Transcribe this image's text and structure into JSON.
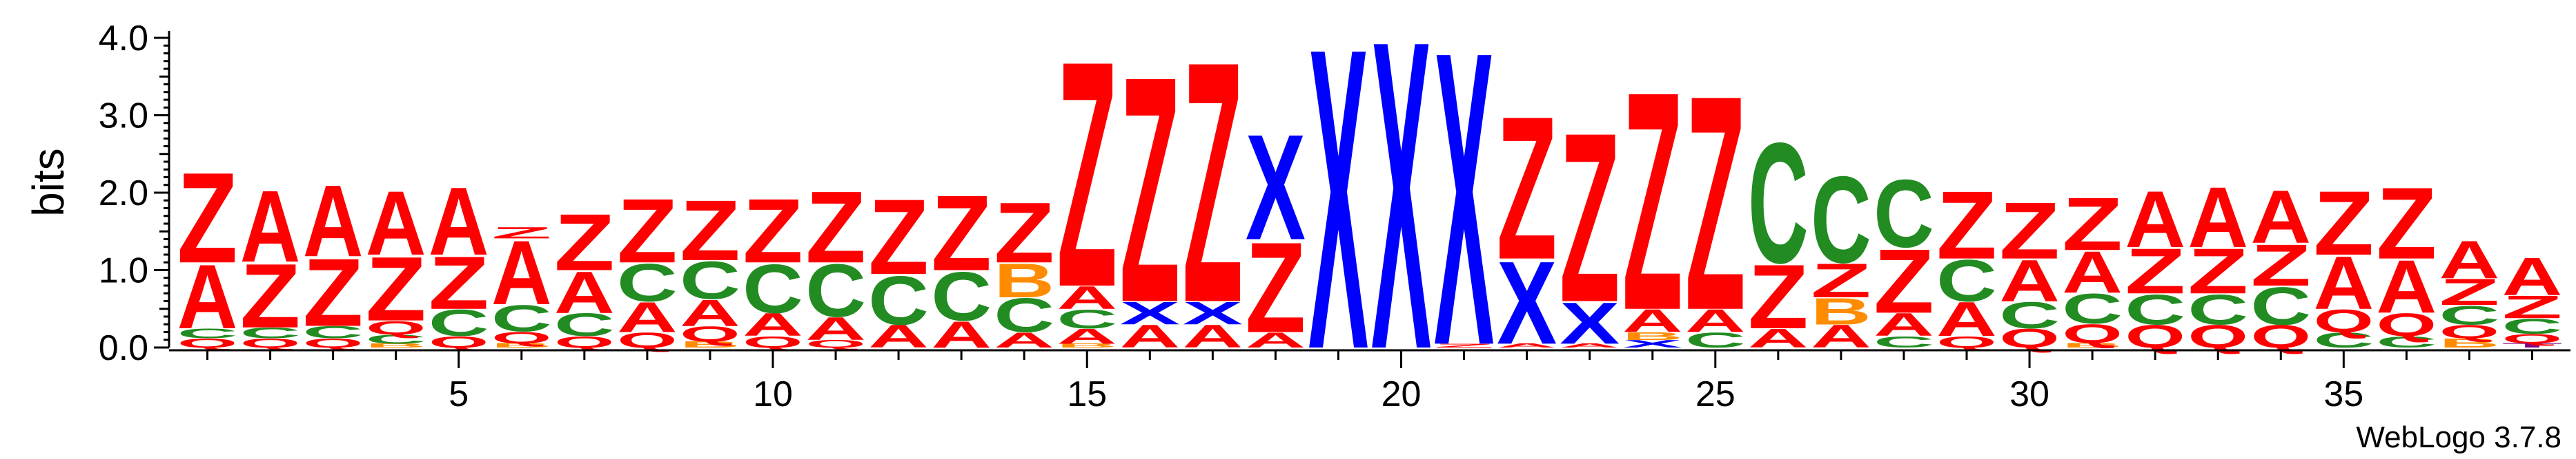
{
  "chart_data": {
    "type": "sequence-logo",
    "ylabel": "bits",
    "xlabel": "",
    "ylim": [
      0,
      4.0
    ],
    "yticks": [
      "0.0",
      "1.0",
      "2.0",
      "3.0",
      "4.0"
    ],
    "yticks_values": [
      0,
      1,
      2,
      3,
      4
    ],
    "xticks": [
      "5",
      "10",
      "15",
      "20",
      "25",
      "30",
      "35"
    ],
    "xticks_values": [
      5,
      10,
      15,
      20,
      25,
      30,
      35
    ],
    "footer": "WebLogo 3.7.8",
    "colors": {
      "Z": "#ff0000",
      "A": "#ff0000",
      "C": "#228b22",
      "Q": "#ff0000",
      "B": "#ff8c00",
      "X": "#0000ff",
      "T": "#800080"
    },
    "positions": [
      {
        "pos": 1,
        "stack": [
          [
            "Q",
            0.12
          ],
          [
            "C",
            0.13
          ],
          [
            "A",
            0.85
          ],
          [
            "Z",
            1.2
          ]
        ]
      },
      {
        "pos": 2,
        "stack": [
          [
            "Q",
            0.12
          ],
          [
            "C",
            0.14
          ],
          [
            "Z",
            0.85
          ],
          [
            "A",
            0.95
          ]
        ]
      },
      {
        "pos": 3,
        "stack": [
          [
            "Q",
            0.12
          ],
          [
            "C",
            0.16
          ],
          [
            "Z",
            0.9
          ],
          [
            "A",
            0.95
          ]
        ]
      },
      {
        "pos": 4,
        "stack": [
          [
            "B",
            0.05
          ],
          [
            "C",
            0.12
          ],
          [
            "Q",
            0.18
          ],
          [
            "Z",
            0.85
          ],
          [
            "A",
            0.85
          ]
        ]
      },
      {
        "pos": 5,
        "stack": [
          [
            "Q",
            0.15
          ],
          [
            "C",
            0.35
          ],
          [
            "Z",
            0.7
          ],
          [
            "A",
            0.9
          ]
        ]
      },
      {
        "pos": 6,
        "stack": [
          [
            "B",
            0.06
          ],
          [
            "Q",
            0.15
          ],
          [
            "C",
            0.35
          ],
          [
            "A",
            0.85
          ],
          [
            "Z",
            0.15
          ]
        ]
      },
      {
        "pos": 7,
        "stack": [
          [
            "Q",
            0.15
          ],
          [
            "C",
            0.3
          ],
          [
            "A",
            0.55
          ],
          [
            "Z",
            0.75
          ]
        ]
      },
      {
        "pos": 8,
        "stack": [
          [
            "Q",
            0.2
          ],
          [
            "A",
            0.4
          ],
          [
            "C",
            0.5
          ],
          [
            "Z",
            0.85
          ]
        ]
      },
      {
        "pos": 9,
        "stack": [
          [
            "B",
            0.08
          ],
          [
            "Q",
            0.2
          ],
          [
            "A",
            0.35
          ],
          [
            "C",
            0.5
          ],
          [
            "Z",
            0.8
          ]
        ]
      },
      {
        "pos": 10,
        "stack": [
          [
            "Q",
            0.15
          ],
          [
            "A",
            0.3
          ],
          [
            "C",
            0.65
          ],
          [
            "Z",
            0.85
          ]
        ]
      },
      {
        "pos": 11,
        "stack": [
          [
            "Q",
            0.1
          ],
          [
            "A",
            0.3
          ],
          [
            "C",
            0.7
          ],
          [
            "Z",
            0.95
          ]
        ]
      },
      {
        "pos": 12,
        "stack": [
          [
            "A",
            0.3
          ],
          [
            "C",
            0.65
          ],
          [
            "Z",
            1.0
          ]
        ]
      },
      {
        "pos": 13,
        "stack": [
          [
            "A",
            0.35
          ],
          [
            "C",
            0.65
          ],
          [
            "Z",
            1.0
          ]
        ]
      },
      {
        "pos": 14,
        "stack": [
          [
            "A",
            0.2
          ],
          [
            "C",
            0.45
          ],
          [
            "B",
            0.45
          ],
          [
            "Z",
            0.8
          ]
        ]
      },
      {
        "pos": 15,
        "stack": [
          [
            "B",
            0.05
          ],
          [
            "A",
            0.2
          ],
          [
            "C",
            0.25
          ],
          [
            "A",
            0.3
          ],
          [
            "Z",
            3.0
          ]
        ]
      },
      {
        "pos": 16,
        "stack": [
          [
            "A",
            0.3
          ],
          [
            "X",
            0.3
          ],
          [
            "Z",
            3.0
          ]
        ]
      },
      {
        "pos": 17,
        "stack": [
          [
            "A",
            0.3
          ],
          [
            "X",
            0.3
          ],
          [
            "Z",
            3.2
          ]
        ]
      },
      {
        "pos": 18,
        "stack": [
          [
            "A",
            0.2
          ],
          [
            "Z",
            1.2
          ],
          [
            "X",
            1.4
          ]
        ]
      },
      {
        "pos": 19,
        "stack": [
          [
            "X",
            4.0
          ]
        ]
      },
      {
        "pos": 20,
        "stack": [
          [
            "X",
            4.1
          ]
        ]
      },
      {
        "pos": 21,
        "stack": [
          [
            "Z",
            0.05
          ],
          [
            "X",
            3.9
          ]
        ]
      },
      {
        "pos": 22,
        "stack": [
          [
            "A",
            0.05
          ],
          [
            "X",
            1.1
          ],
          [
            "Z",
            1.9
          ]
        ]
      },
      {
        "pos": 23,
        "stack": [
          [
            "A",
            0.05
          ],
          [
            "X",
            0.55
          ],
          [
            "Z",
            2.25
          ]
        ]
      },
      {
        "pos": 24,
        "stack": [
          [
            "X",
            0.1
          ],
          [
            "B",
            0.1
          ],
          [
            "A",
            0.3
          ],
          [
            "Z",
            2.9
          ]
        ]
      },
      {
        "pos": 25,
        "stack": [
          [
            "C",
            0.2
          ],
          [
            "A",
            0.3
          ],
          [
            "Z",
            2.85
          ]
        ]
      },
      {
        "pos": 26,
        "stack": [
          [
            "A",
            0.25
          ],
          [
            "Z",
            0.85
          ],
          [
            "C",
            1.6
          ]
        ]
      },
      {
        "pos": 27,
        "stack": [
          [
            "A",
            0.3
          ],
          [
            "B",
            0.35
          ],
          [
            "Z",
            0.45
          ],
          [
            "C",
            1.15
          ]
        ]
      },
      {
        "pos": 28,
        "stack": [
          [
            "C",
            0.15
          ],
          [
            "A",
            0.3
          ],
          [
            "Z",
            0.85
          ],
          [
            "C",
            0.9
          ]
        ]
      },
      {
        "pos": 29,
        "stack": [
          [
            "Q",
            0.15
          ],
          [
            "A",
            0.45
          ],
          [
            "C",
            0.55
          ],
          [
            "Z",
            0.9
          ]
        ]
      },
      {
        "pos": 30,
        "stack": [
          [
            "Q",
            0.25
          ],
          [
            "C",
            0.35
          ],
          [
            "A",
            0.55
          ],
          [
            "Z",
            0.75
          ]
        ]
      },
      {
        "pos": 31,
        "stack": [
          [
            "B",
            0.06
          ],
          [
            "Q",
            0.25
          ],
          [
            "C",
            0.4
          ],
          [
            "A",
            0.55
          ],
          [
            "Z",
            0.7
          ]
        ]
      },
      {
        "pos": 32,
        "stack": [
          [
            "Q",
            0.3
          ],
          [
            "C",
            0.4
          ],
          [
            "Z",
            0.6
          ],
          [
            "A",
            0.75
          ]
        ]
      },
      {
        "pos": 33,
        "stack": [
          [
            "Q",
            0.3
          ],
          [
            "C",
            0.4
          ],
          [
            "Z",
            0.6
          ],
          [
            "A",
            0.8
          ]
        ]
      },
      {
        "pos": 34,
        "stack": [
          [
            "Q",
            0.3
          ],
          [
            "C",
            0.5
          ],
          [
            "Z",
            0.55
          ],
          [
            "A",
            0.7
          ]
        ]
      },
      {
        "pos": 35,
        "stack": [
          [
            "C",
            0.2
          ],
          [
            "Q",
            0.3
          ],
          [
            "A",
            0.7
          ],
          [
            "Z",
            0.85
          ]
        ]
      },
      {
        "pos": 36,
        "stack": [
          [
            "C",
            0.15
          ],
          [
            "Q",
            0.3
          ],
          [
            "A",
            0.7
          ],
          [
            "Z",
            0.95
          ]
        ]
      },
      {
        "pos": 37,
        "stack": [
          [
            "B",
            0.12
          ],
          [
            "Q",
            0.18
          ],
          [
            "C",
            0.25
          ],
          [
            "Z",
            0.35
          ],
          [
            "A",
            0.5
          ]
        ]
      },
      {
        "pos": 38,
        "stack": [
          [
            "T",
            0.06
          ],
          [
            "Q",
            0.12
          ],
          [
            "C",
            0.2
          ],
          [
            "Z",
            0.3
          ],
          [
            "A",
            0.5
          ]
        ]
      }
    ]
  }
}
